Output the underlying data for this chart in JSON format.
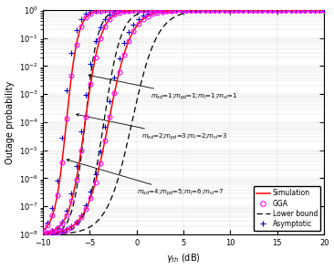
{
  "title": "",
  "xlabel": "γ_{th} (dB)",
  "ylabel": "Outage probability",
  "xlim": [
    -10,
    20
  ],
  "ylim_log": [
    -8,
    0
  ],
  "x_ticks": [
    -10,
    -5,
    0,
    5,
    10,
    15,
    20
  ],
  "legend_entries": [
    "Simulation",
    "GGA",
    "Lower bound",
    "Asymptotic"
  ],
  "sim_color": "#ff0000",
  "gga_color": "#ff00ff",
  "lb_color": "#000000",
  "asym_color": "#0000cd",
  "annotation1": "m_{sd}=1;m_{pd}=1;m_I=1;m_{vI}=1",
  "annotation2": "m_{sd}=2;m_{pd}=3;m_I=2;m_{vI}=3",
  "annotation3": "m_{sd}=4;m_{pd}=5;m_I=6;m_{vI}=7",
  "knees_sim": [
    -7.5,
    -5.5,
    -3.0
  ],
  "steep_sim": [
    1.6,
    1.2,
    0.85
  ],
  "knees_lb": [
    -5.5,
    -3.5,
    -0.5
  ],
  "steep_lb": [
    1.5,
    1.1,
    0.75
  ],
  "knees_asym": [
    -7.8,
    -5.8,
    -3.3
  ],
  "steep_asym": [
    1.7,
    1.3,
    0.9
  ]
}
